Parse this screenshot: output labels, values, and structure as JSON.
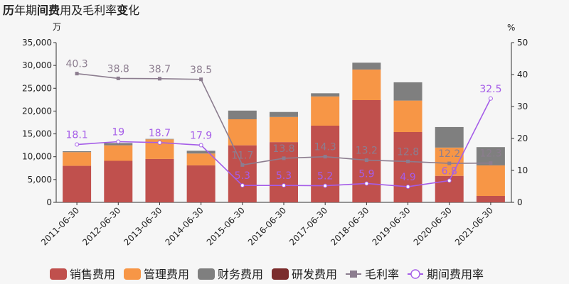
{
  "chart_data": {
    "type": "bar",
    "title": "历年期间费用及毛利率变化",
    "title_bold_chars": [
      "历",
      "间",
      "费",
      "变"
    ],
    "left_unit": "万",
    "right_unit": "%",
    "categories": [
      "2011-06-30",
      "2012-06-30",
      "2013-06-30",
      "2014-06-30",
      "2015-06-30",
      "2016-06-30",
      "2017-06-30",
      "2018-06-30",
      "2019-06-30",
      "2020-06-30",
      "2021-06-30"
    ],
    "ylim_left": [
      0,
      35000
    ],
    "yticks_left": [
      0,
      5000,
      10000,
      15000,
      20000,
      25000,
      30000,
      35000
    ],
    "ylim_right": [
      0,
      50
    ],
    "yticks_right": [
      0,
      10,
      20,
      30,
      40,
      50
    ],
    "stacked_series": [
      {
        "name": "销售费用",
        "color": "#c0504d",
        "values": [
          8000,
          9100,
          9500,
          8100,
          12500,
          13200,
          16800,
          22400,
          15400,
          5800,
          1400
        ]
      },
      {
        "name": "管理费用",
        "color": "#f79646",
        "values": [
          3000,
          3400,
          4300,
          2600,
          5700,
          5500,
          6400,
          6700,
          6900,
          6200,
          6700
        ]
      },
      {
        "name": "财务费用",
        "color": "#7f7f7f",
        "values": [
          200,
          500,
          100,
          600,
          1900,
          1100,
          700,
          1500,
          4000,
          4500,
          4000
        ]
      },
      {
        "name": "研发费用",
        "color": "#7b2c2c",
        "values": [
          0,
          0,
          0,
          0,
          0,
          0,
          0,
          0,
          0,
          0,
          0
        ]
      }
    ],
    "line_series": [
      {
        "name": "毛利率",
        "color": "#8c7d8f",
        "marker": "square",
        "values": [
          40.3,
          38.8,
          38.7,
          38.5,
          11.7,
          13.8,
          14.3,
          13.2,
          12.8,
          12.2,
          12.3
        ],
        "labels": [
          "40.3",
          "38.8",
          "38.7",
          "38.5",
          "11.7",
          "13.8",
          "14.3",
          "13.2",
          "12.8",
          "12.2",
          "12.3"
        ]
      },
      {
        "name": "期间费用率",
        "color": "#a55de8",
        "marker": "circle",
        "values": [
          18.1,
          19,
          18.7,
          17.9,
          5.3,
          5.3,
          5.2,
          5.9,
          4.9,
          6.8,
          32.5
        ],
        "labels": [
          "18.1",
          "19",
          "18.7",
          "17.9",
          "5.3",
          "5.3",
          "5.2",
          "5.9",
          "4.9",
          "6.8",
          "32.5"
        ]
      }
    ],
    "grid": false,
    "legend_position": "bottom"
  }
}
